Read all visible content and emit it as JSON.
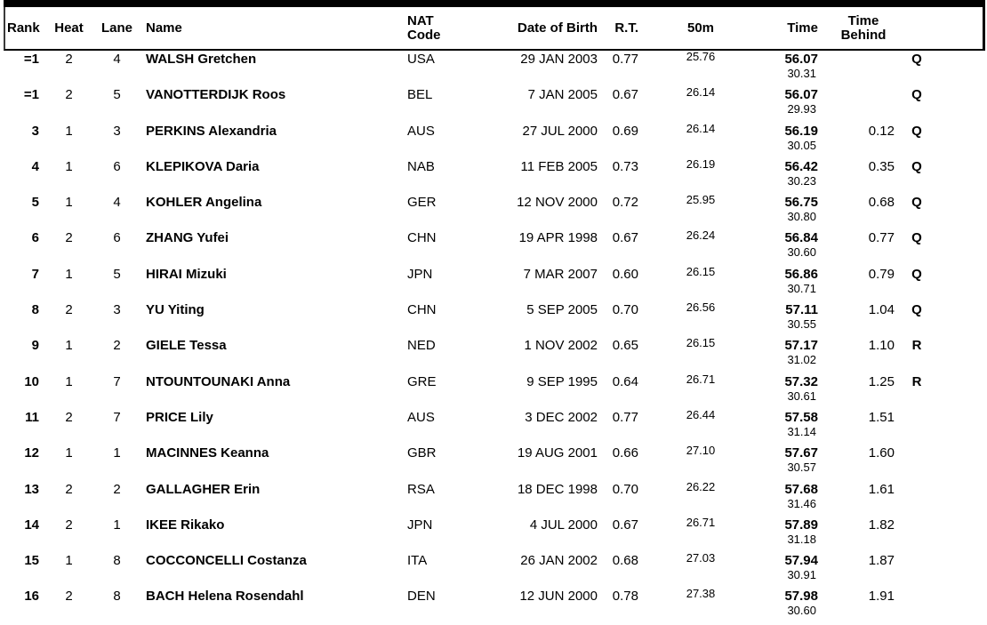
{
  "table": {
    "headers": {
      "rank": "Rank",
      "heat": "Heat",
      "lane": "Lane",
      "name": "Name",
      "nat_line1": "NAT",
      "nat_line2": "Code",
      "dob": "Date of Birth",
      "rt": "R.T.",
      "split50": "50m",
      "time": "Time",
      "behind_line1": "Time",
      "behind_line2": "Behind"
    },
    "rows": [
      {
        "rank": "=1",
        "heat": "2",
        "lane": "4",
        "name": "WALSH Gretchen",
        "nat": "USA",
        "dob": "29 JAN 2003",
        "rt": "0.77",
        "split50": "25.76",
        "time": "56.07",
        "split2": "30.31",
        "behind": "",
        "qual": "Q"
      },
      {
        "rank": "=1",
        "heat": "2",
        "lane": "5",
        "name": "VANOTTERDIJK Roos",
        "nat": "BEL",
        "dob": "7 JAN 2005",
        "rt": "0.67",
        "split50": "26.14",
        "time": "56.07",
        "split2": "29.93",
        "behind": "",
        "qual": "Q"
      },
      {
        "rank": "3",
        "heat": "1",
        "lane": "3",
        "name": "PERKINS Alexandria",
        "nat": "AUS",
        "dob": "27 JUL 2000",
        "rt": "0.69",
        "split50": "26.14",
        "time": "56.19",
        "split2": "30.05",
        "behind": "0.12",
        "qual": "Q"
      },
      {
        "rank": "4",
        "heat": "1",
        "lane": "6",
        "name": "KLEPIKOVA Daria",
        "nat": "NAB",
        "dob": "11 FEB 2005",
        "rt": "0.73",
        "split50": "26.19",
        "time": "56.42",
        "split2": "30.23",
        "behind": "0.35",
        "qual": "Q"
      },
      {
        "rank": "5",
        "heat": "1",
        "lane": "4",
        "name": "KOHLER Angelina",
        "nat": "GER",
        "dob": "12 NOV 2000",
        "rt": "0.72",
        "split50": "25.95",
        "time": "56.75",
        "split2": "30.80",
        "behind": "0.68",
        "qual": "Q"
      },
      {
        "rank": "6",
        "heat": "2",
        "lane": "6",
        "name": "ZHANG Yufei",
        "nat": "CHN",
        "dob": "19 APR 1998",
        "rt": "0.67",
        "split50": "26.24",
        "time": "56.84",
        "split2": "30.60",
        "behind": "0.77",
        "qual": "Q"
      },
      {
        "rank": "7",
        "heat": "1",
        "lane": "5",
        "name": "HIRAI Mizuki",
        "nat": "JPN",
        "dob": "7 MAR 2007",
        "rt": "0.60",
        "split50": "26.15",
        "time": "56.86",
        "split2": "30.71",
        "behind": "0.79",
        "qual": "Q"
      },
      {
        "rank": "8",
        "heat": "2",
        "lane": "3",
        "name": "YU Yiting",
        "nat": "CHN",
        "dob": "5 SEP 2005",
        "rt": "0.70",
        "split50": "26.56",
        "time": "57.11",
        "split2": "30.55",
        "behind": "1.04",
        "qual": "Q"
      },
      {
        "rank": "9",
        "heat": "1",
        "lane": "2",
        "name": "GIELE Tessa",
        "nat": "NED",
        "dob": "1 NOV 2002",
        "rt": "0.65",
        "split50": "26.15",
        "time": "57.17",
        "split2": "31.02",
        "behind": "1.10",
        "qual": "R"
      },
      {
        "rank": "10",
        "heat": "1",
        "lane": "7",
        "name": "NTOUNTOUNAKI Anna",
        "nat": "GRE",
        "dob": "9 SEP 1995",
        "rt": "0.64",
        "split50": "26.71",
        "time": "57.32",
        "split2": "30.61",
        "behind": "1.25",
        "qual": "R"
      },
      {
        "rank": "11",
        "heat": "2",
        "lane": "7",
        "name": "PRICE Lily",
        "nat": "AUS",
        "dob": "3 DEC 2002",
        "rt": "0.77",
        "split50": "26.44",
        "time": "57.58",
        "split2": "31.14",
        "behind": "1.51",
        "qual": ""
      },
      {
        "rank": "12",
        "heat": "1",
        "lane": "1",
        "name": "MACINNES Keanna",
        "nat": "GBR",
        "dob": "19 AUG 2001",
        "rt": "0.66",
        "split50": "27.10",
        "time": "57.67",
        "split2": "30.57",
        "behind": "1.60",
        "qual": ""
      },
      {
        "rank": "13",
        "heat": "2",
        "lane": "2",
        "name": "GALLAGHER Erin",
        "nat": "RSA",
        "dob": "18 DEC 1998",
        "rt": "0.70",
        "split50": "26.22",
        "time": "57.68",
        "split2": "31.46",
        "behind": "1.61",
        "qual": ""
      },
      {
        "rank": "14",
        "heat": "2",
        "lane": "1",
        "name": "IKEE Rikako",
        "nat": "JPN",
        "dob": "4 JUL 2000",
        "rt": "0.67",
        "split50": "26.71",
        "time": "57.89",
        "split2": "31.18",
        "behind": "1.82",
        "qual": ""
      },
      {
        "rank": "15",
        "heat": "1",
        "lane": "8",
        "name": "COCCONCELLI Costanza",
        "nat": "ITA",
        "dob": "26 JAN 2002",
        "rt": "0.68",
        "split50": "27.03",
        "time": "57.94",
        "split2": "30.91",
        "behind": "1.87",
        "qual": ""
      },
      {
        "rank": "16",
        "heat": "2",
        "lane": "8",
        "name": "BACH Helena Rosendahl",
        "nat": "DEN",
        "dob": "12 JUN 2000",
        "rt": "0.78",
        "split50": "27.38",
        "time": "57.98",
        "split2": "30.60",
        "behind": "1.91",
        "qual": ""
      }
    ]
  }
}
